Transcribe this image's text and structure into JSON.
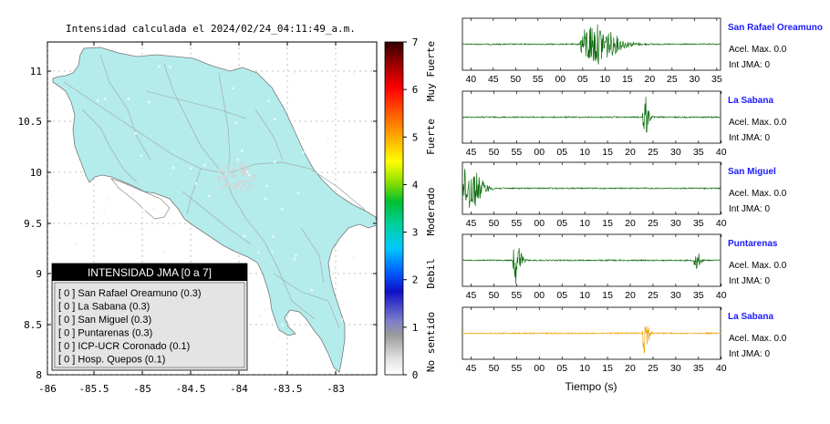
{
  "map": {
    "title": "Intensidad calculada el 2024/02/24_04:11:49_a.m.",
    "x_ticks": [
      "-86",
      "-85.5",
      "-85",
      "-84.5",
      "-84",
      "-83.5",
      "-83"
    ],
    "y_ticks": [
      "11",
      "10.5",
      "10",
      "9.5",
      "9",
      "8.5",
      "8"
    ],
    "land_color": "#b4ecec",
    "legend": {
      "title": "INTENSIDAD JMA [0 a 7]",
      "items": [
        "[ 0 ]  San Rafael Oreamuno (0.3)",
        "[ 0 ]  La Sabana (0.3)",
        "[ 0 ]  San Miguel (0.3)",
        "[ 0 ]  Puntarenas (0.3)",
        "[ 0 ]  ICP-UCR Coronado (0.1)",
        "[ 0 ]  Hosp. Quepos (0.1)"
      ]
    }
  },
  "colorbar": {
    "ticks": [
      "7",
      "6",
      "5",
      "4",
      "3",
      "2",
      "1",
      "0"
    ],
    "labels": [
      "Muy Fuerte",
      "Fuerte",
      "Moderado",
      "Debil",
      "No sentido"
    ]
  },
  "traces": {
    "xlabel": "Tiempo (s)",
    "panels": [
      {
        "station": "San Rafael Oreamuno",
        "acel": "Acel. Max. 0.0",
        "int": "Int JMA: 0",
        "ticks": [
          "40",
          "45",
          "50",
          "55",
          "00",
          "05",
          "10",
          "15",
          "20",
          "25",
          "30",
          "35"
        ],
        "tick_offset": 0.22,
        "color": "#0b6b0b",
        "bursts": [
          [
            0.5,
            0.18,
            0.85
          ]
        ]
      },
      {
        "station": "La Sabana",
        "acel": "Acel. Max. 0.0",
        "int": "Int JMA: 0",
        "ticks": [
          "45",
          "50",
          "55",
          "00",
          "05",
          "10",
          "15",
          "20",
          "25",
          "30",
          "35",
          "40"
        ],
        "tick_offset": 0.0,
        "color": "#0b6b0b",
        "bursts": [
          [
            0.705,
            0.03,
            0.95
          ]
        ]
      },
      {
        "station": "San Miguel",
        "acel": "Acel. Max. 0.0",
        "int": "Int JMA: 0",
        "ticks": [
          "45",
          "50",
          "55",
          "00",
          "05",
          "10",
          "15",
          "20",
          "25",
          "30",
          "35",
          "40"
        ],
        "tick_offset": 0.0,
        "color": "#0b6b0b",
        "bursts": [
          [
            0.02,
            0.1,
            0.95
          ]
        ]
      },
      {
        "station": "Puntarenas",
        "acel": "Acel. Max. 0.0",
        "int": "Int JMA: 0",
        "ticks": [
          "45",
          "50",
          "55",
          "00",
          "05",
          "10",
          "15",
          "20",
          "25",
          "30",
          "35",
          "40"
        ],
        "tick_offset": 0.0,
        "color": "#0b6b0b",
        "bursts": [
          [
            0.205,
            0.04,
            0.95
          ],
          [
            0.905,
            0.03,
            0.4
          ]
        ]
      },
      {
        "station": "La Sabana",
        "acel": "Acel. Max. 0.0",
        "int": "Int JMA: 0",
        "ticks": [
          "45",
          "50",
          "55",
          "00",
          "05",
          "10",
          "15",
          "20",
          "25",
          "30",
          "35",
          "40"
        ],
        "tick_offset": 0.0,
        "color": "#f0a000",
        "bursts": [
          [
            0.705,
            0.03,
            0.95
          ]
        ]
      }
    ]
  },
  "chart_data": {
    "type": "line",
    "title": "",
    "xlabel": "Tiempo (s)",
    "series": [
      {
        "name": "San Rafael Oreamuno"
      },
      {
        "name": "La Sabana"
      },
      {
        "name": "San Miguel"
      },
      {
        "name": "Puntarenas"
      },
      {
        "name": "La Sabana"
      }
    ]
  }
}
